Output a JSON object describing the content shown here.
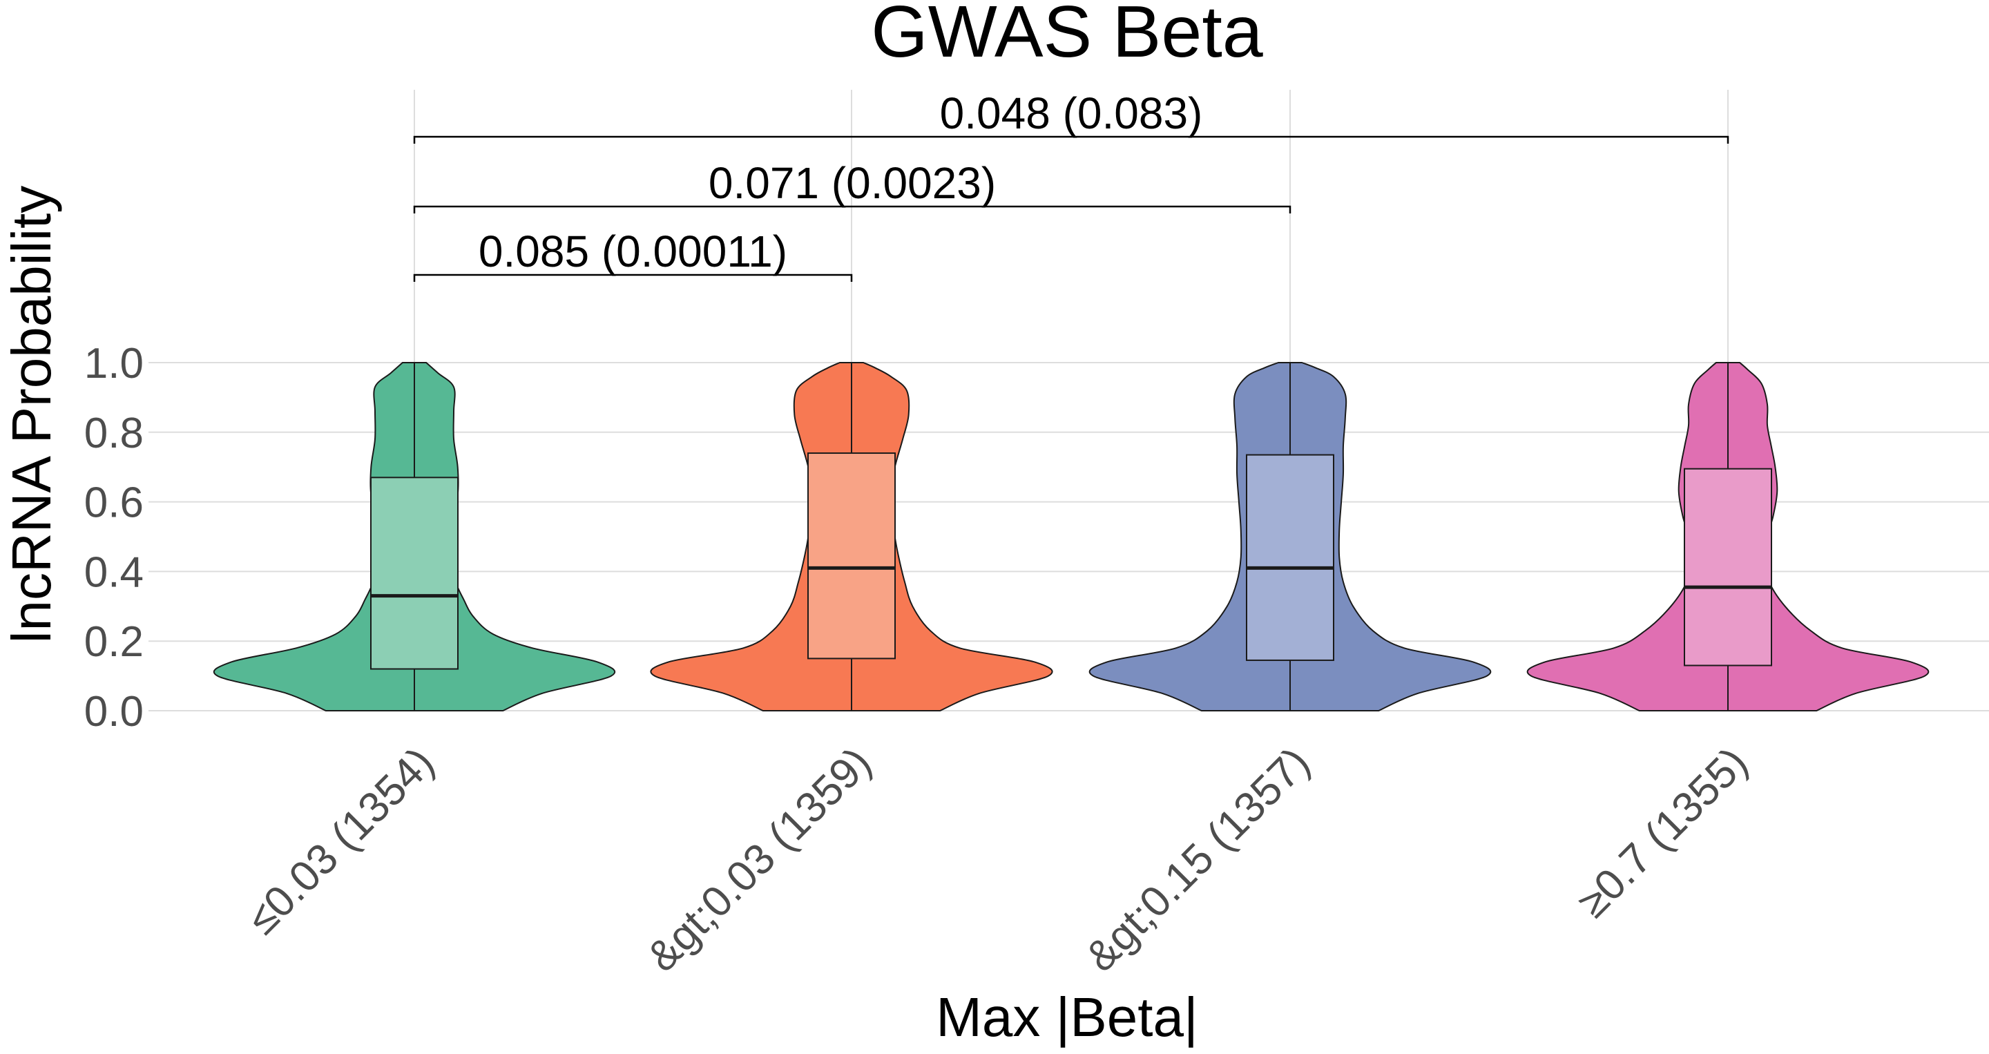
{
  "chart_data": {
    "type": "violin",
    "title": "GWAS Beta",
    "xlabel": "Max |Beta|",
    "ylabel": "lncRNA Probability",
    "ylim": [
      0,
      1
    ],
    "yticks": [
      0.0,
      0.2,
      0.4,
      0.6,
      0.8,
      1.0
    ],
    "ytick_labels": [
      "0.0",
      "0.2",
      "0.4",
      "0.6",
      "0.8",
      "1.0"
    ],
    "grid": true,
    "categories": [
      "≤0.03 (1354)",
      "&gt;0.03 (1359)",
      "&gt;0.15 (1357)",
      "≥0.7 (1355)"
    ],
    "colors": [
      "#56b894",
      "#f77953",
      "#7b8ebf",
      "#e06fb2"
    ],
    "box_colors": [
      "#8ccfb4",
      "#f8a386",
      "#a3b0d5",
      "#e99bc9"
    ],
    "boxes": [
      {
        "q1": 0.12,
        "median": 0.33,
        "q3": 0.67,
        "whisker_low": 0.0,
        "whisker_high": 1.0
      },
      {
        "q1": 0.15,
        "median": 0.41,
        "q3": 0.74,
        "whisker_low": 0.0,
        "whisker_high": 1.0
      },
      {
        "q1": 0.145,
        "median": 0.41,
        "q3": 0.735,
        "whisker_low": 0.0,
        "whisker_high": 1.0
      },
      {
        "q1": 0.13,
        "median": 0.355,
        "q3": 0.695,
        "whisker_low": 0.0,
        "whisker_high": 1.0
      }
    ],
    "violin_density": [
      [
        [
          0.0,
          0.45
        ],
        [
          0.05,
          0.65
        ],
        [
          0.1,
          1.0
        ],
        [
          0.14,
          0.93
        ],
        [
          0.18,
          0.6
        ],
        [
          0.22,
          0.4
        ],
        [
          0.27,
          0.3
        ],
        [
          0.32,
          0.25
        ],
        [
          0.37,
          0.21
        ],
        [
          0.42,
          0.2
        ],
        [
          0.48,
          0.18
        ],
        [
          0.55,
          0.19
        ],
        [
          0.62,
          0.22
        ],
        [
          0.7,
          0.22
        ],
        [
          0.78,
          0.2
        ],
        [
          0.86,
          0.2
        ],
        [
          0.93,
          0.2
        ],
        [
          0.97,
          0.12
        ],
        [
          1.0,
          0.06
        ]
      ],
      [
        [
          0.0,
          0.45
        ],
        [
          0.05,
          0.65
        ],
        [
          0.1,
          1.0
        ],
        [
          0.14,
          0.93
        ],
        [
          0.18,
          0.55
        ],
        [
          0.23,
          0.4
        ],
        [
          0.3,
          0.31
        ],
        [
          0.37,
          0.27
        ],
        [
          0.44,
          0.24
        ],
        [
          0.5,
          0.22
        ],
        [
          0.56,
          0.21
        ],
        [
          0.63,
          0.2
        ],
        [
          0.7,
          0.22
        ],
        [
          0.78,
          0.26
        ],
        [
          0.85,
          0.29
        ],
        [
          0.92,
          0.28
        ],
        [
          0.96,
          0.2
        ],
        [
          0.985,
          0.12
        ],
        [
          1.0,
          0.06
        ]
      ],
      [
        [
          0.0,
          0.45
        ],
        [
          0.05,
          0.65
        ],
        [
          0.1,
          1.0
        ],
        [
          0.14,
          0.93
        ],
        [
          0.18,
          0.58
        ],
        [
          0.23,
          0.42
        ],
        [
          0.3,
          0.32
        ],
        [
          0.37,
          0.27
        ],
        [
          0.44,
          0.25
        ],
        [
          0.52,
          0.25
        ],
        [
          0.6,
          0.26
        ],
        [
          0.68,
          0.27
        ],
        [
          0.76,
          0.27
        ],
        [
          0.84,
          0.28
        ],
        [
          0.91,
          0.28
        ],
        [
          0.96,
          0.22
        ],
        [
          0.985,
          0.13
        ],
        [
          1.0,
          0.06
        ]
      ],
      [
        [
          0.0,
          0.45
        ],
        [
          0.05,
          0.65
        ],
        [
          0.1,
          1.0
        ],
        [
          0.14,
          0.93
        ],
        [
          0.18,
          0.58
        ],
        [
          0.23,
          0.42
        ],
        [
          0.3,
          0.29
        ],
        [
          0.37,
          0.21
        ],
        [
          0.44,
          0.19
        ],
        [
          0.5,
          0.2
        ],
        [
          0.56,
          0.23
        ],
        [
          0.63,
          0.25
        ],
        [
          0.7,
          0.24
        ],
        [
          0.76,
          0.22
        ],
        [
          0.82,
          0.2
        ],
        [
          0.88,
          0.2
        ],
        [
          0.94,
          0.17
        ],
        [
          0.98,
          0.1
        ],
        [
          1.0,
          0.06
        ]
      ]
    ],
    "comparisons": [
      {
        "from": 0,
        "to": 1,
        "label": "0.085 (0.00011)"
      },
      {
        "from": 0,
        "to": 2,
        "label": "0.071 (0.0023)"
      },
      {
        "from": 0,
        "to": 3,
        "label": "0.048 (0.083)"
      }
    ]
  }
}
